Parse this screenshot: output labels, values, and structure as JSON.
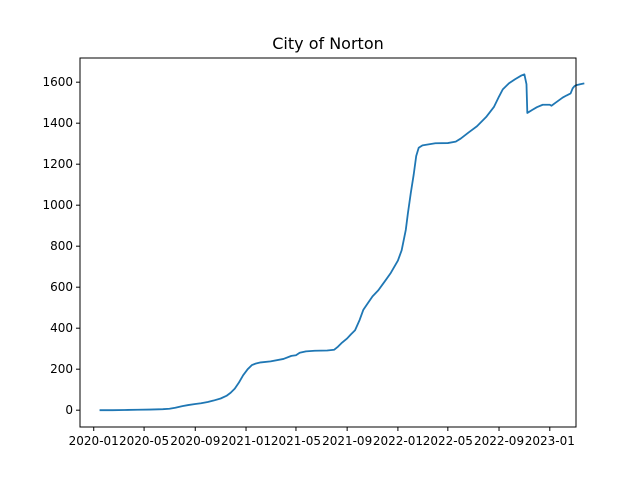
{
  "chart_data": {
    "type": "line",
    "title": "City of Norton",
    "xlabel": "",
    "ylabel": "",
    "x_axis_type": "date",
    "xlim": [
      "2019-11-29",
      "2023-03-05"
    ],
    "ylim": [
      -82,
      1718
    ],
    "x_ticks": [
      "2020-01",
      "2020-05",
      "2020-09",
      "2021-01",
      "2021-05",
      "2021-09",
      "2022-01",
      "2022-05",
      "2022-09",
      "2023-01"
    ],
    "y_ticks": [
      0,
      200,
      400,
      600,
      800,
      1000,
      1200,
      1400,
      1600
    ],
    "grid": false,
    "legend": "none",
    "line_color": "#1f77b4",
    "series": [
      {
        "points": [
          [
            "2020-01-15",
            0
          ],
          [
            "2020-02-15",
            0
          ],
          [
            "2020-03-15",
            1
          ],
          [
            "2020-04-15",
            2
          ],
          [
            "2020-05-15",
            3
          ],
          [
            "2020-06-15",
            5
          ],
          [
            "2020-07-01",
            7
          ],
          [
            "2020-07-15",
            12
          ],
          [
            "2020-08-01",
            20
          ],
          [
            "2020-08-15",
            25
          ],
          [
            "2020-09-01",
            30
          ],
          [
            "2020-09-15",
            34
          ],
          [
            "2020-10-01",
            40
          ],
          [
            "2020-10-15",
            47
          ],
          [
            "2020-11-01",
            57
          ],
          [
            "2020-11-15",
            70
          ],
          [
            "2020-11-25",
            85
          ],
          [
            "2020-12-05",
            105
          ],
          [
            "2020-12-15",
            135
          ],
          [
            "2020-12-25",
            170
          ],
          [
            "2021-01-05",
            200
          ],
          [
            "2021-01-15",
            220
          ],
          [
            "2021-01-25",
            228
          ],
          [
            "2021-02-05",
            233
          ],
          [
            "2021-03-01",
            238
          ],
          [
            "2021-04-01",
            250
          ],
          [
            "2021-04-20",
            265
          ],
          [
            "2021-05-01",
            268
          ],
          [
            "2021-05-10",
            280
          ],
          [
            "2021-05-25",
            287
          ],
          [
            "2021-06-15",
            290
          ],
          [
            "2021-07-15",
            291
          ],
          [
            "2021-08-01",
            295
          ],
          [
            "2021-08-10",
            310
          ],
          [
            "2021-08-20",
            330
          ],
          [
            "2021-09-01",
            350
          ],
          [
            "2021-09-10",
            370
          ],
          [
            "2021-09-20",
            390
          ],
          [
            "2021-10-01",
            440
          ],
          [
            "2021-10-10",
            490
          ],
          [
            "2021-10-20",
            520
          ],
          [
            "2021-11-01",
            555
          ],
          [
            "2021-11-15",
            585
          ],
          [
            "2021-12-01",
            630
          ],
          [
            "2021-12-15",
            670
          ],
          [
            "2022-01-01",
            730
          ],
          [
            "2022-01-10",
            780
          ],
          [
            "2022-01-20",
            880
          ],
          [
            "2022-01-25",
            960
          ],
          [
            "2022-02-01",
            1060
          ],
          [
            "2022-02-08",
            1150
          ],
          [
            "2022-02-14",
            1240
          ],
          [
            "2022-02-20",
            1280
          ],
          [
            "2022-03-01",
            1292
          ],
          [
            "2022-04-01",
            1302
          ],
          [
            "2022-05-01",
            1303
          ],
          [
            "2022-05-20",
            1310
          ],
          [
            "2022-06-01",
            1325
          ],
          [
            "2022-06-20",
            1355
          ],
          [
            "2022-07-10",
            1385
          ],
          [
            "2022-08-01",
            1430
          ],
          [
            "2022-08-20",
            1480
          ],
          [
            "2022-09-01",
            1530
          ],
          [
            "2022-09-10",
            1565
          ],
          [
            "2022-09-25",
            1595
          ],
          [
            "2022-10-10",
            1615
          ],
          [
            "2022-10-25",
            1633
          ],
          [
            "2022-11-01",
            1638
          ],
          [
            "2022-11-06",
            1590
          ],
          [
            "2022-11-08",
            1450
          ],
          [
            "2022-11-20",
            1465
          ],
          [
            "2022-12-01",
            1478
          ],
          [
            "2022-12-15",
            1490
          ],
          [
            "2023-01-01",
            1490
          ],
          [
            "2023-01-05",
            1485
          ],
          [
            "2023-01-15",
            1500
          ],
          [
            "2023-02-01",
            1525
          ],
          [
            "2023-02-10",
            1535
          ],
          [
            "2023-02-20",
            1545
          ],
          [
            "2023-02-25",
            1570
          ],
          [
            "2023-03-01",
            1580
          ],
          [
            "2023-03-05",
            1585
          ],
          [
            "2023-03-15",
            1590
          ],
          [
            "2023-03-25",
            1594
          ]
        ]
      }
    ]
  }
}
